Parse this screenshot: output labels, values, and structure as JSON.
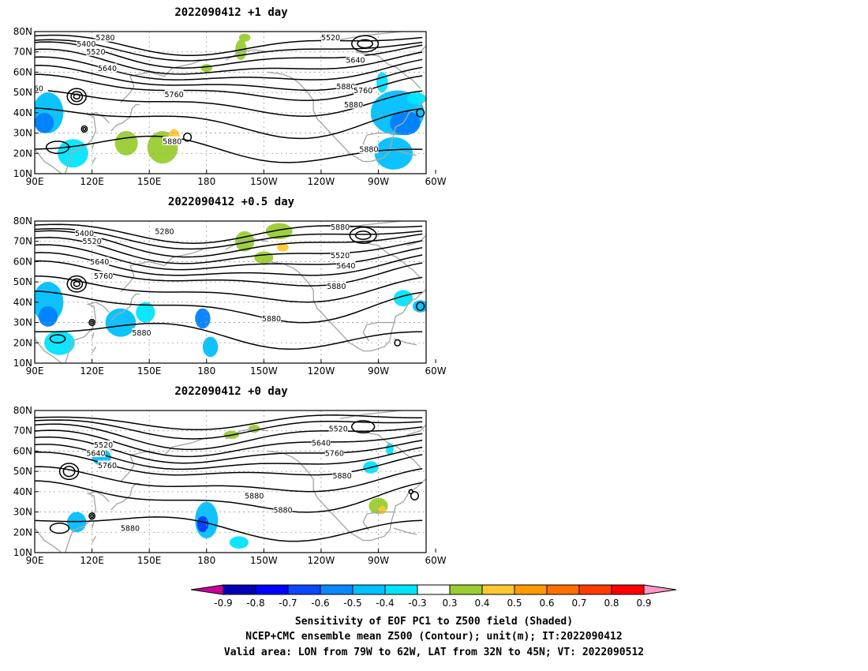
{
  "panels": [
    {
      "title": "2022090412  +1 day",
      "contour_labels": [
        "5280",
        "5400",
        "5520",
        "5640",
        "5760",
        "5880",
        "5520",
        "5640",
        "5880",
        "5880",
        "5880",
        "5760",
        "60"
      ],
      "blobs": [
        {
          "lon": 97,
          "lat": 40,
          "rx": 8,
          "ry": 10,
          "c": "#00c0ff"
        },
        {
          "lon": 95,
          "lat": 35,
          "rx": 5,
          "ry": 5,
          "c": "#0080ff"
        },
        {
          "lon": 110,
          "lat": 20,
          "rx": 8,
          "ry": 7,
          "c": "#00e5ff"
        },
        {
          "lon": 138,
          "lat": 25,
          "rx": 6,
          "ry": 6,
          "c": "#9acd32"
        },
        {
          "lon": 157,
          "lat": 23,
          "rx": 8,
          "ry": 8,
          "c": "#9acd32"
        },
        {
          "lon": 163,
          "lat": 28,
          "rx": 3,
          "ry": 4,
          "c": "#ffc832"
        },
        {
          "lon": 198,
          "lat": 71,
          "rx": 3,
          "ry": 5,
          "c": "#9acd32"
        },
        {
          "lon": 180,
          "lat": 62,
          "rx": 3,
          "ry": 2,
          "c": "#9acd32"
        },
        {
          "lon": 200,
          "lat": 77,
          "rx": 3,
          "ry": 2,
          "c": "#9acd32"
        },
        {
          "lon": 280,
          "lat": 40,
          "rx": 14,
          "ry": 11,
          "c": "#00c0ff"
        },
        {
          "lon": 284,
          "lat": 35,
          "rx": 8,
          "ry": 6,
          "c": "#0080ff"
        },
        {
          "lon": 278,
          "lat": 20,
          "rx": 10,
          "ry": 8,
          "c": "#00c0ff"
        },
        {
          "lon": 290,
          "lat": 47,
          "rx": 5,
          "ry": 3,
          "c": "#00e5ff"
        },
        {
          "lon": 272,
          "lat": 55,
          "rx": 3,
          "ry": 5,
          "c": "#00e5ff"
        }
      ]
    },
    {
      "title": "2022090412  +0.5 day",
      "contour_labels": [
        "5400",
        "5280",
        "5520",
        "5640",
        "5760",
        "5880",
        "5520",
        "5640",
        "5760",
        "5880",
        "5880",
        "5880"
      ],
      "blobs": [
        {
          "lon": 97,
          "lat": 40,
          "rx": 8,
          "ry": 10,
          "c": "#00c0ff"
        },
        {
          "lon": 97,
          "lat": 33,
          "rx": 5,
          "ry": 5,
          "c": "#0080ff"
        },
        {
          "lon": 103,
          "lat": 20,
          "rx": 8,
          "ry": 6,
          "c": "#00e5ff"
        },
        {
          "lon": 135,
          "lat": 30,
          "rx": 8,
          "ry": 7,
          "c": "#00c0ff"
        },
        {
          "lon": 148,
          "lat": 35,
          "rx": 5,
          "ry": 5,
          "c": "#00e5ff"
        },
        {
          "lon": 178,
          "lat": 32,
          "rx": 4,
          "ry": 5,
          "c": "#0080ff"
        },
        {
          "lon": 182,
          "lat": 18,
          "rx": 4,
          "ry": 5,
          "c": "#00c0ff"
        },
        {
          "lon": 200,
          "lat": 70,
          "rx": 5,
          "ry": 5,
          "c": "#9acd32"
        },
        {
          "lon": 218,
          "lat": 75,
          "rx": 7,
          "ry": 4,
          "c": "#9acd32"
        },
        {
          "lon": 210,
          "lat": 62,
          "rx": 5,
          "ry": 3,
          "c": "#9acd32"
        },
        {
          "lon": 220,
          "lat": 67,
          "rx": 3,
          "ry": 2,
          "c": "#ffc832"
        },
        {
          "lon": 283,
          "lat": 42,
          "rx": 5,
          "ry": 4,
          "c": "#00e5ff"
        },
        {
          "lon": 292,
          "lat": 38,
          "rx": 4,
          "ry": 3,
          "c": "#00c0ff"
        }
      ]
    },
    {
      "title": "2022090412  +0 day",
      "contour_labels": [
        "5520",
        "5640",
        "5760",
        "5520",
        "5640",
        "5760",
        "5880",
        "5880",
        "5880",
        "5880"
      ],
      "blobs": [
        {
          "lon": 125,
          "lat": 57,
          "rx": 5,
          "ry": 4,
          "c": "#00c0ff"
        },
        {
          "lon": 112,
          "lat": 25,
          "rx": 5,
          "ry": 5,
          "c": "#00c0ff"
        },
        {
          "lon": 180,
          "lat": 26,
          "rx": 6,
          "ry": 9,
          "c": "#00c0ff"
        },
        {
          "lon": 178,
          "lat": 24,
          "rx": 3,
          "ry": 4,
          "c": "#0040ff"
        },
        {
          "lon": 197,
          "lat": 15,
          "rx": 5,
          "ry": 3,
          "c": "#00e5ff"
        },
        {
          "lon": 193,
          "lat": 68,
          "rx": 4,
          "ry": 2,
          "c": "#9acd32"
        },
        {
          "lon": 205,
          "lat": 71,
          "rx": 3,
          "ry": 2,
          "c": "#9acd32"
        },
        {
          "lon": 270,
          "lat": 33,
          "rx": 5,
          "ry": 4,
          "c": "#9acd32"
        },
        {
          "lon": 272,
          "lat": 31,
          "rx": 2,
          "ry": 2,
          "c": "#ffc832"
        },
        {
          "lon": 266,
          "lat": 52,
          "rx": 4,
          "ry": 3,
          "c": "#00e5ff"
        },
        {
          "lon": 276,
          "lat": 61,
          "rx": 2,
          "ry": 3,
          "c": "#00e5ff"
        }
      ]
    }
  ],
  "lat_ticks": [
    "80N",
    "70N",
    "60N",
    "50N",
    "40N",
    "30N",
    "20N",
    "10N"
  ],
  "lon_ticks": [
    "90E",
    "120E",
    "150E",
    "180",
    "150W",
    "120W",
    "90W",
    "60W"
  ],
  "colorbar": {
    "colors": [
      "#c8009a",
      "#0000b4",
      "#0000ff",
      "#0c46ff",
      "#0a87ff",
      "#00c0ff",
      "#00e5ff",
      "#ffffff",
      "#9acd32",
      "#ffc832",
      "#ff9a00",
      "#ff6e00",
      "#ff3c00",
      "#ff0000",
      "#ff96c8"
    ],
    "labels": [
      "-0.9",
      "-0.8",
      "-0.7",
      "-0.6",
      "-0.5",
      "-0.4",
      "-0.3",
      "0.3",
      "0.4",
      "0.5",
      "0.6",
      "0.7",
      "0.8",
      "0.9"
    ]
  },
  "caption": {
    "line1": "Sensitivity of EOF PC1 to Z500 field (Shaded)",
    "line2": "NCEP+CMC ensemble mean Z500 (Contour); unit(m); IT:2022090412",
    "line3": "Valid area: LON from 79W to 62W, LAT from 32N to 45N; VT: 2022090512"
  }
}
